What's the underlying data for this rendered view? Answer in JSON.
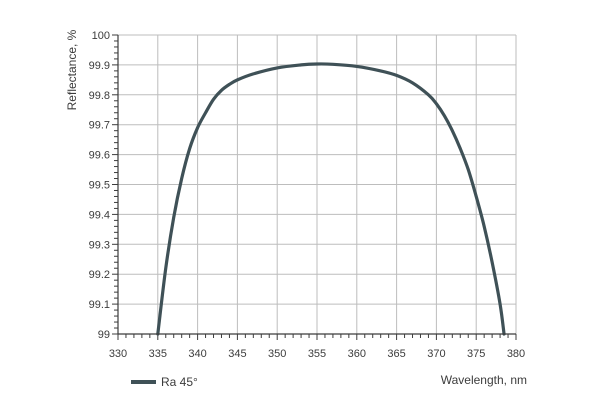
{
  "chart_data": {
    "type": "line",
    "title": "",
    "xlabel": "Wavelength, nm",
    "ylabel": "Reflectance, %",
    "xlim": [
      330,
      380
    ],
    "ylim": [
      99,
      100
    ],
    "x_ticks": [
      "330",
      "335",
      "340",
      "345",
      "350",
      "355",
      "360",
      "365",
      "370",
      "375",
      "380"
    ],
    "y_ticks": [
      "99",
      "99.1",
      "99.2",
      "99.3",
      "99.4",
      "99.5",
      "99.6",
      "99.7",
      "99.8",
      "99.9",
      "100"
    ],
    "grid": true,
    "legend_position": "bottom-left",
    "series": [
      {
        "name": "Ra 45°",
        "color": "#3f5157",
        "x": [
          335.0,
          336.0,
          337.0,
          338.0,
          339.0,
          340.0,
          341.0,
          342.0,
          343.0,
          344.0,
          345.0,
          347.0,
          350.0,
          353.0,
          355.0,
          357.0,
          360.0,
          363.0,
          365.0,
          367.0,
          369.0,
          370.0,
          371.0,
          372.0,
          373.0,
          374.0,
          375.0,
          376.0,
          377.0,
          378.0,
          378.5
        ],
        "y": [
          99.0,
          99.22,
          99.39,
          99.52,
          99.62,
          99.69,
          99.74,
          99.785,
          99.815,
          99.835,
          99.85,
          99.87,
          99.89,
          99.9,
          99.903,
          99.902,
          99.895,
          99.88,
          99.865,
          99.84,
          99.8,
          99.77,
          99.73,
          99.68,
          99.62,
          99.55,
          99.46,
          99.36,
          99.24,
          99.1,
          99.0
        ]
      }
    ]
  }
}
